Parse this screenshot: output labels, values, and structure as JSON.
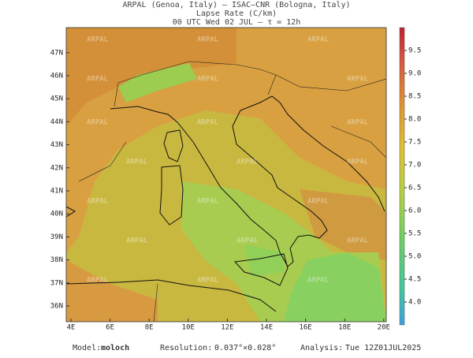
{
  "header": {
    "line1": "ARPAL (Genoa, Italy)  —  ISAC–CNR (Bologna, Italy)",
    "line2": "Lapse Rate (C/km)",
    "line3": "00 UTC Wed 02 JUL  —  τ = 12h"
  },
  "map": {
    "lon_labels": [
      "4E",
      "6E",
      "8E",
      "10E",
      "12E",
      "14E",
      "16E",
      "18E",
      "20E"
    ],
    "lat_labels": [
      "36N",
      "37N",
      "38N",
      "39N",
      "40N",
      "41N",
      "42N",
      "43N",
      "44N",
      "45N",
      "46N",
      "47N"
    ],
    "watermark": "ARPAL"
  },
  "colorbar": {
    "lim": [
      3.5,
      10
    ],
    "ticks": [
      {
        "value": 4,
        "label": "4.0"
      },
      {
        "value": 4.5,
        "label": "4.5"
      },
      {
        "value": 5,
        "label": "5.0"
      },
      {
        "value": 5.5,
        "label": "5.5"
      },
      {
        "value": 6,
        "label": "6.0"
      },
      {
        "value": 6.5,
        "label": "6.5"
      },
      {
        "value": 7,
        "label": "7.0"
      },
      {
        "value": 7.5,
        "label": "7.5"
      },
      {
        "value": 8,
        "label": "8.0"
      },
      {
        "value": 8.5,
        "label": "8.5"
      },
      {
        "value": 9,
        "label": "9.0"
      },
      {
        "value": 9.5,
        "label": "9.5"
      }
    ]
  },
  "footer": {
    "model_label": "Model:",
    "model": "moloch",
    "resolution_label": "Resolution:",
    "resolution": "0.037°×0.028°",
    "analysis_label": "Analysis:",
    "analysis": "Tue 12Z01JUL2025"
  }
}
